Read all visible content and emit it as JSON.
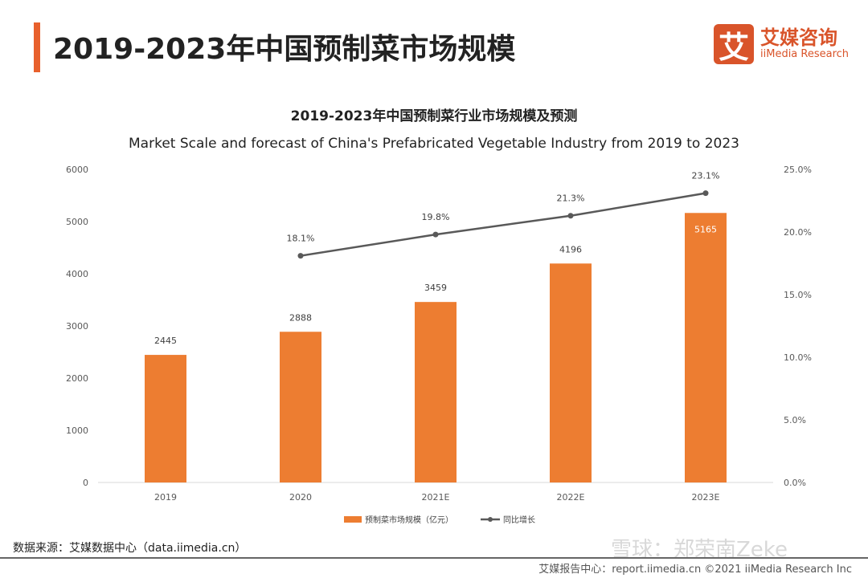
{
  "header": {
    "title": "2019-2023年中国预制菜市场规模"
  },
  "logo": {
    "cn": "艾媒咨询",
    "en": "iiMedia Research",
    "mark": "艾"
  },
  "chart_data": {
    "type": "bar+line",
    "title": "2019-2023年中国预制菜行业市场规模及预测",
    "subtitle": "Market Scale and forecast of China's Prefabricated Vegetable Industry from 2019 to 2023",
    "categories": [
      "2019",
      "2020",
      "2021E",
      "2022E",
      "2023E"
    ],
    "series": [
      {
        "name": "预制菜市场规模（亿元）",
        "type": "bar",
        "axis": "left",
        "color": "#ed7d31",
        "values": [
          2445,
          2888,
          3459,
          4196,
          5165
        ],
        "labels": [
          "2445",
          "2888",
          "3459",
          "4196",
          "5165"
        ]
      },
      {
        "name": "同比增长",
        "type": "line",
        "axis": "right",
        "color": "#595959",
        "values": [
          null,
          18.1,
          19.8,
          21.3,
          23.1
        ],
        "labels": [
          "",
          "18.1%",
          "19.8%",
          "21.3%",
          "23.1%"
        ]
      }
    ],
    "left_axis": {
      "range": [
        0,
        6000
      ],
      "ticks": [
        "0",
        "1000",
        "2000",
        "3000",
        "4000",
        "5000",
        "6000"
      ]
    },
    "right_axis": {
      "range": [
        0,
        25
      ],
      "ticks": [
        "0.0%",
        "5.0%",
        "10.0%",
        "15.0%",
        "20.0%",
        "25.0%"
      ]
    },
    "grid": false,
    "legend": "bottom"
  },
  "source": "数据来源：艾媒数据中心（data.iimedia.cn）",
  "footer": "艾媒报告中心：report.iimedia.cn    ©2021  iiMedia Research  Inc",
  "watermark": "雪球：郑荣南Zeke"
}
